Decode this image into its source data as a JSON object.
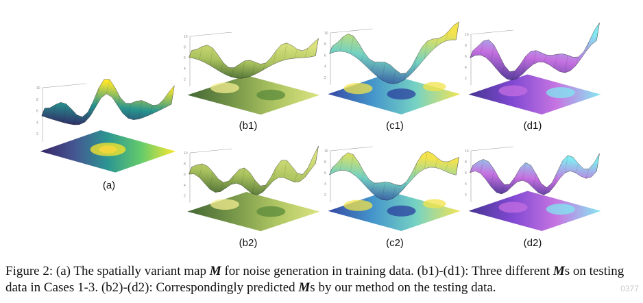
{
  "panels": [
    {
      "id": "a",
      "label": "(a)",
      "scheme": "viridis"
    },
    {
      "id": "b1",
      "label": "(b1)",
      "scheme": "green"
    },
    {
      "id": "c1",
      "label": "(c1)",
      "scheme": "blueyellow"
    },
    {
      "id": "d1",
      "label": "(d1)",
      "scheme": "pink"
    },
    {
      "id": "b2",
      "label": "(b2)",
      "scheme": "green"
    },
    {
      "id": "c2",
      "label": "(c2)",
      "scheme": "blueyellow"
    },
    {
      "id": "d2",
      "label": "(d2)",
      "scheme": "pink"
    }
  ],
  "caption": {
    "p1": "Figure 2: (a) The spatially variant map ",
    "m1": "M",
    "p2": " for noise generation in training data. (b1)-(d1): Three different ",
    "m2": "M",
    "p3": "s on testing data in Cases 1-3. (b2)-(d2): Correspondingly predicted ",
    "m3": "M",
    "p4": "s by our method on the testing data."
  },
  "watermark": "0377",
  "colors": {
    "viridis": [
      "#2b1a5e",
      "#3b4c8c",
      "#21918c",
      "#5ec962",
      "#fde725"
    ],
    "green": [
      "#3a5f2a",
      "#6d8f3e",
      "#a9c25a",
      "#d9e27a"
    ],
    "blueyellow": [
      "#2a3f9e",
      "#3a8fc8",
      "#6fd0c0",
      "#f2e34a"
    ],
    "pink": [
      "#3b2a8c",
      "#7a3fd0",
      "#c46ee0",
      "#7fe8f0"
    ]
  }
}
